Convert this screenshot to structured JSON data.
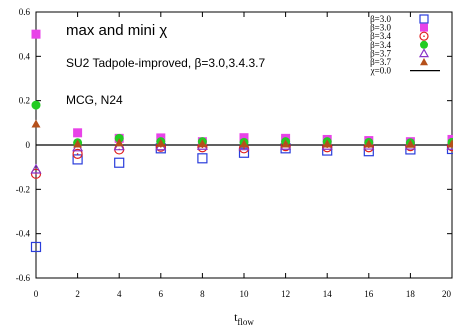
{
  "chart_data": {
    "type": "scatter",
    "xlabel": "t",
    "xlabel_sub": "flow",
    "xlim": [
      0,
      20
    ],
    "ylim": [
      -0.6,
      0.6
    ],
    "x_ticks": [
      0,
      2,
      4,
      6,
      8,
      10,
      12,
      14,
      16,
      18,
      20
    ],
    "x_tick_labels": [
      "0",
      "2",
      "4",
      "6",
      "8",
      "10",
      "12",
      "14",
      "16",
      "18",
      "20"
    ],
    "y_ticks": [
      -0.6,
      -0.4,
      -0.2,
      0,
      0.2,
      0.4,
      0.6
    ],
    "y_tick_labels": [
      "-0.6",
      "-0.4",
      "-0.2",
      "0",
      "0.2",
      "0.4",
      "0.6"
    ],
    "grid": false,
    "legend_position": "top-right",
    "annotations": [
      {
        "text": "max and mini χ",
        "kind": "main"
      },
      {
        "text": "SU2 Tadpole-improved, β=3.0,3.4.3.7",
        "kind": "normal"
      },
      {
        "text": "MCG, N24",
        "kind": "normal"
      }
    ],
    "series": [
      {
        "name": "β=3.0",
        "marker": "square-open",
        "color": "#2a3ddb",
        "x": [
          0,
          2,
          4,
          6,
          8,
          10,
          12,
          14,
          16,
          18,
          20
        ],
        "y": [
          -0.46,
          -0.065,
          -0.08,
          -0.015,
          -0.06,
          -0.035,
          -0.015,
          -0.025,
          -0.028,
          -0.02,
          -0.018
        ]
      },
      {
        "name": "β=3.0",
        "marker": "square-filled",
        "color": "#e843e8",
        "x": [
          0,
          2,
          4,
          6,
          8,
          10,
          12,
          14,
          16,
          18,
          20
        ],
        "y": [
          0.5,
          0.055,
          0.03,
          0.032,
          0.015,
          0.033,
          0.03,
          0.025,
          0.02,
          0.015,
          0.025
        ]
      },
      {
        "name": "β=3.4",
        "marker": "circle-open",
        "color": "#e0201f",
        "x": [
          0,
          2,
          4,
          6,
          8,
          10,
          12,
          14,
          16,
          18,
          20
        ],
        "y": [
          -0.13,
          -0.04,
          -0.02,
          -0.008,
          -0.01,
          -0.015,
          -0.005,
          -0.01,
          -0.01,
          -0.005,
          -0.005
        ]
      },
      {
        "name": "β=3.4",
        "marker": "circle-filled",
        "color": "#22cc22",
        "x": [
          0,
          2,
          4,
          6,
          8,
          10,
          12,
          14,
          16,
          18,
          20
        ],
        "y": [
          0.18,
          0.01,
          0.03,
          0.015,
          0.015,
          0.012,
          0.015,
          0.015,
          0.012,
          0.01,
          0.012
        ]
      },
      {
        "name": "β=3.7",
        "marker": "triangle-open",
        "color": "#8a34c8",
        "x": [
          0,
          2,
          4,
          6,
          8,
          10,
          12,
          14,
          16,
          18,
          20
        ],
        "y": [
          -0.11,
          -0.01,
          -0.005,
          -0.005,
          -0.003,
          -0.005,
          -0.003,
          -0.003,
          -0.002,
          -0.002,
          -0.003
        ]
      },
      {
        "name": "β=3.7",
        "marker": "triangle-filled",
        "color": "#b5501a",
        "x": [
          0,
          2,
          4,
          6,
          8,
          10,
          12,
          14,
          16,
          18,
          20
        ],
        "y": [
          0.095,
          0.005,
          0.01,
          0.008,
          0.006,
          0.005,
          0.005,
          0.005,
          0.005,
          0.004,
          0.005
        ]
      },
      {
        "name": "χ=0.0",
        "marker": "line",
        "color": "#000000",
        "x": [
          0,
          20
        ],
        "y": [
          0,
          0
        ]
      }
    ]
  }
}
